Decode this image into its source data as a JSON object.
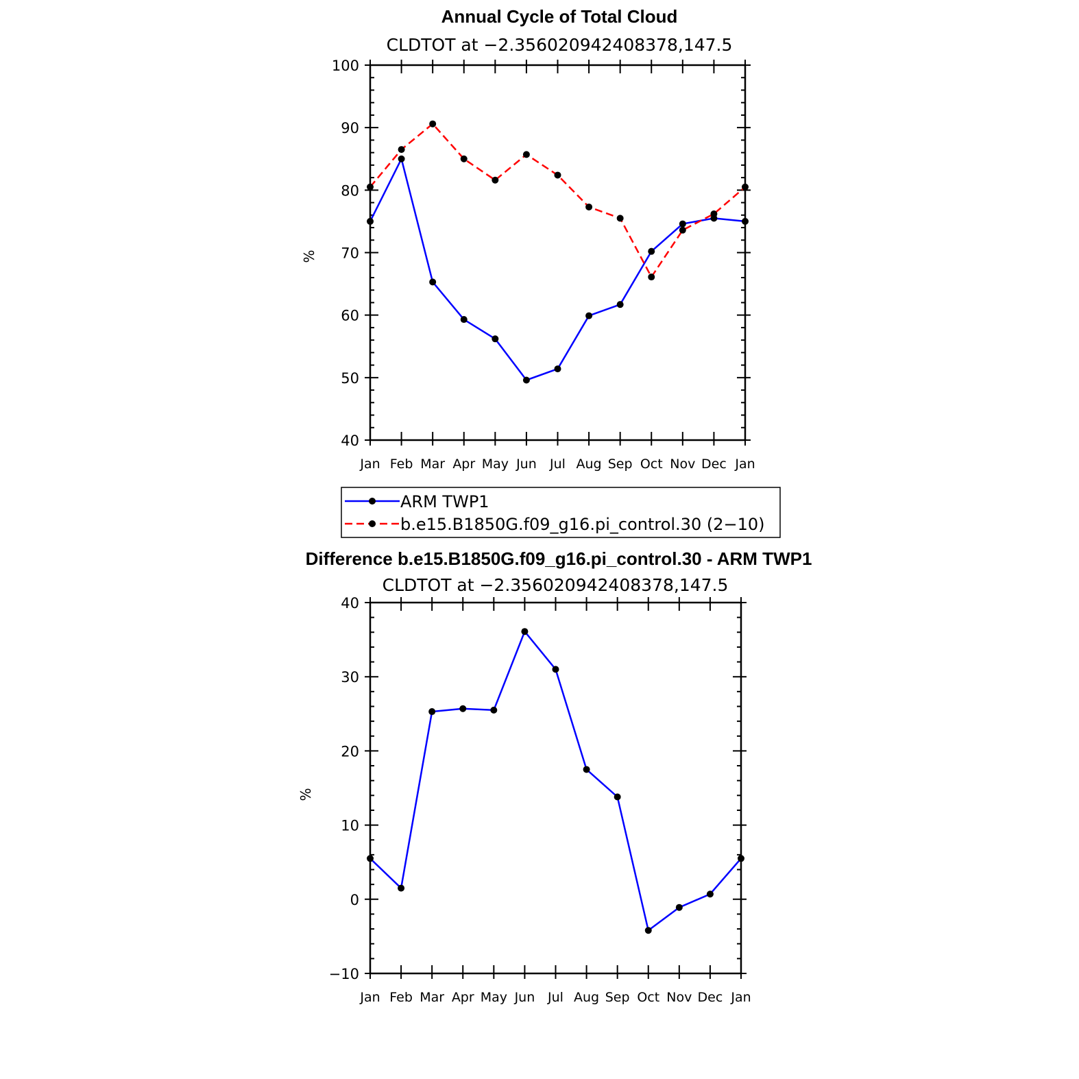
{
  "chart_data": [
    {
      "type": "line",
      "title": "Annual Cycle of Total Cloud",
      "subtitle": "CLDTOT at −2.356020942408378,147.5",
      "ylabel": "%",
      "xlabel": "",
      "ylim": [
        40,
        100
      ],
      "yticks": [
        40,
        50,
        60,
        70,
        80,
        90,
        100
      ],
      "categories": [
        "Jan",
        "Feb",
        "Mar",
        "Apr",
        "May",
        "Jun",
        "Jul",
        "Aug",
        "Sep",
        "Oct",
        "Nov",
        "Dec",
        "Jan"
      ],
      "series": [
        {
          "name": "ARM TWP1",
          "color": "#0000ff",
          "dash": "solid",
          "values": [
            75.0,
            85.0,
            65.3,
            59.3,
            56.2,
            49.6,
            51.4,
            59.9,
            61.7,
            70.2,
            74.6,
            75.5,
            75.0
          ]
        },
        {
          "name": "b.e15.B1850G.f09_g16.pi_control.30 (2−10)",
          "color": "#ff0000",
          "dash": "dashed",
          "values": [
            80.5,
            86.5,
            90.6,
            85.0,
            81.6,
            85.7,
            82.4,
            77.3,
            75.5,
            66.1,
            73.6,
            76.2,
            80.5
          ]
        }
      ],
      "legend": "below",
      "grid": false
    },
    {
      "type": "line",
      "title": "Difference b.e15.B1850G.f09_g16.pi_control.30 - ARM TWP1",
      "subtitle": "CLDTOT at −2.356020942408378,147.5",
      "ylabel": "%",
      "xlabel": "",
      "ylim": [
        -10,
        40
      ],
      "yticks": [
        -10,
        0,
        10,
        20,
        30,
        40
      ],
      "ytick_labels": [
        "−10",
        "0",
        "10",
        "20",
        "30",
        "40"
      ],
      "categories": [
        "Jan",
        "Feb",
        "Mar",
        "Apr",
        "May",
        "Jun",
        "Jul",
        "Aug",
        "Sep",
        "Oct",
        "Nov",
        "Dec",
        "Jan"
      ],
      "series": [
        {
          "color": "#0000ff",
          "dash": "solid",
          "values": [
            5.5,
            1.5,
            25.3,
            25.7,
            25.5,
            36.1,
            31.0,
            17.5,
            13.8,
            -4.2,
            -1.1,
            0.7,
            5.5
          ]
        }
      ],
      "grid": false
    }
  ]
}
